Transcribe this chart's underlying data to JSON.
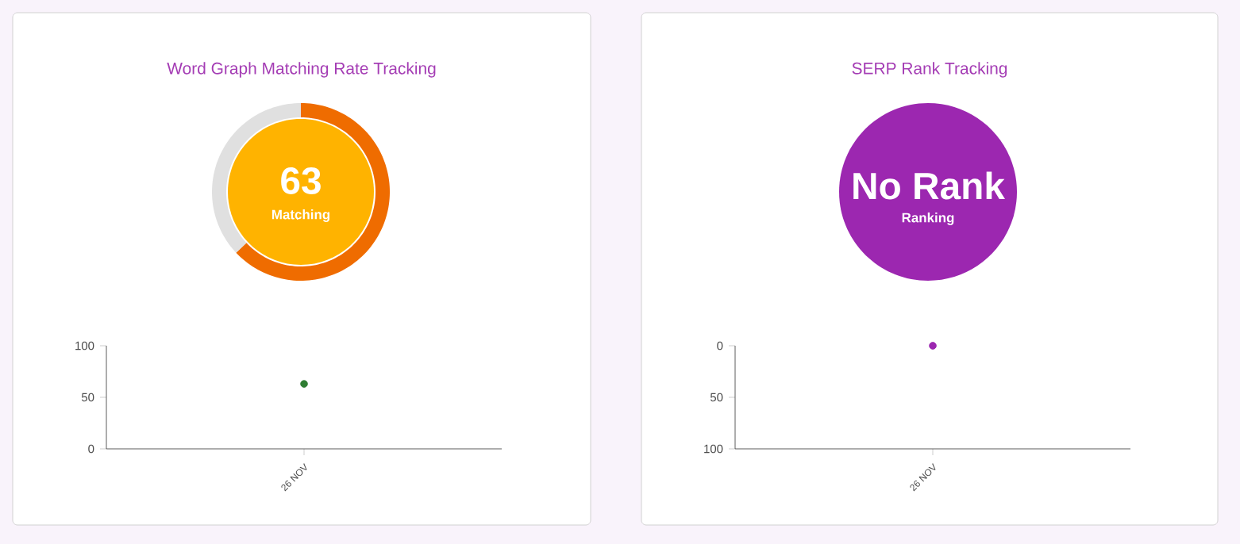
{
  "chart_data": [
    {
      "type": "donut",
      "title": "Word Graph Matching Rate Tracking",
      "categories": [
        null,
        null
      ],
      "values": [
        63,
        37
      ],
      "colors": [
        "#ef6c00",
        "#e0e0e0"
      ],
      "value_labels": [
        "63",
        null
      ],
      "annotations": [
        "Matching"
      ]
    },
    {
      "type": "scatter",
      "categories": [
        "26 NOV"
      ],
      "values": [
        63
      ],
      "color": "#2e7d32",
      "ylim": [
        0,
        100
      ],
      "yticks": [
        0,
        50,
        100
      ]
    },
    {
      "type": "other",
      "title": "SERP Rank Tracking",
      "annotations": [
        "No Rank",
        "Ranking"
      ],
      "color": "#9c27b0"
    },
    {
      "type": "scatter",
      "categories": [
        "26 NOV"
      ],
      "values": [
        0
      ],
      "color": "#9c27b0",
      "ylim": [
        100,
        0
      ],
      "yticks": [
        0,
        50,
        100
      ]
    }
  ]
}
